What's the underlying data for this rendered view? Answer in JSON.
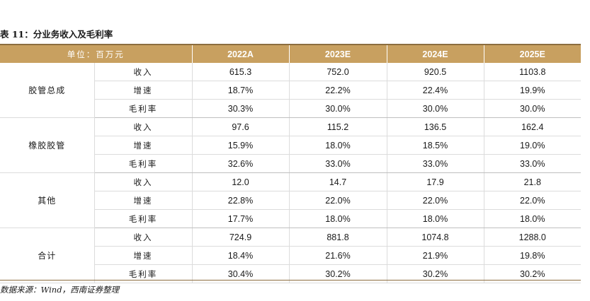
{
  "title": {
    "label": "表 11：",
    "text": "分业务收入及毛利率"
  },
  "header": {
    "unit": "单位：百万元",
    "years": [
      "2022A",
      "2023E",
      "2024E",
      "2025E"
    ]
  },
  "groups": [
    {
      "name": "胶管总成",
      "rows": [
        {
          "metric": "收入",
          "values": [
            "615.3",
            "752.0",
            "920.5",
            "1103.8"
          ]
        },
        {
          "metric": "增速",
          "values": [
            "18.7%",
            "22.2%",
            "22.4%",
            "19.9%"
          ]
        },
        {
          "metric": "毛利率",
          "values": [
            "30.3%",
            "30.0%",
            "30.0%",
            "30.0%"
          ]
        }
      ]
    },
    {
      "name": "橡胶胶管",
      "rows": [
        {
          "metric": "收入",
          "values": [
            "97.6",
            "115.2",
            "136.5",
            "162.4"
          ]
        },
        {
          "metric": "增速",
          "values": [
            "15.9%",
            "18.0%",
            "18.5%",
            "19.0%"
          ]
        },
        {
          "metric": "毛利率",
          "values": [
            "32.6%",
            "33.0%",
            "33.0%",
            "33.0%"
          ]
        }
      ]
    },
    {
      "name": "其他",
      "rows": [
        {
          "metric": "收入",
          "values": [
            "12.0",
            "14.7",
            "17.9",
            "21.8"
          ]
        },
        {
          "metric": "增速",
          "values": [
            "22.8%",
            "22.0%",
            "22.0%",
            "22.0%"
          ]
        },
        {
          "metric": "毛利率",
          "values": [
            "17.7%",
            "18.0%",
            "18.0%",
            "18.0%"
          ]
        }
      ]
    },
    {
      "name": "合计",
      "rows": [
        {
          "metric": "收入",
          "values": [
            "724.9",
            "881.8",
            "1074.8",
            "1288.0"
          ]
        },
        {
          "metric": "增速",
          "values": [
            "18.4%",
            "21.6%",
            "21.9%",
            "19.8%"
          ]
        },
        {
          "metric": "毛利率",
          "values": [
            "30.4%",
            "30.2%",
            "30.2%",
            "30.2%"
          ]
        }
      ]
    }
  ],
  "source": "数据来源：Wind，西南证券整理",
  "colors": {
    "header_fill": "#c8a060",
    "header_rule": "#8c6d3f"
  }
}
